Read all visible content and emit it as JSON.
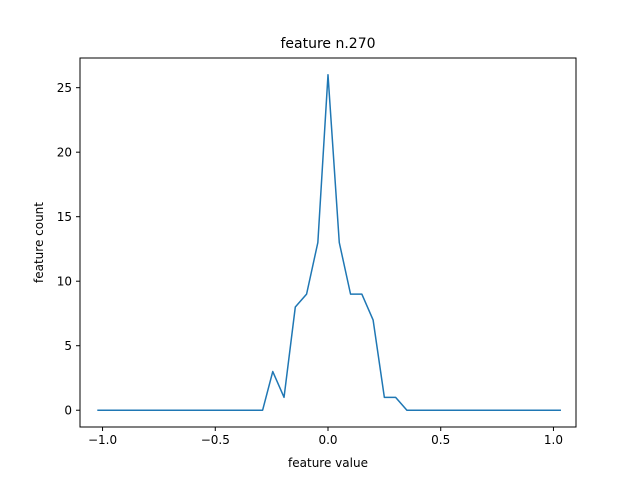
{
  "chart_data": {
    "type": "line",
    "title": "feature n.270",
    "xlabel": "feature value",
    "ylabel": "feature count",
    "xlim": [
      -1.1,
      1.1
    ],
    "ylim": [
      -1.3,
      27.3
    ],
    "xticks": [
      -1.0,
      -0.5,
      0.0,
      0.5,
      1.0
    ],
    "xtick_labels": [
      "−1.0",
      "−0.5",
      "0.0",
      "0.5",
      "1.0"
    ],
    "yticks": [
      0,
      5,
      10,
      15,
      20,
      25
    ],
    "ytick_labels": [
      "0",
      "5",
      "10",
      "15",
      "20",
      "25"
    ],
    "grid": false,
    "legend": "none",
    "series": [
      {
        "color": "#1f77b4",
        "x": [
          -1.02,
          -0.97,
          -0.92,
          -0.87,
          -0.82,
          -0.77,
          -0.72,
          -0.67,
          -0.62,
          -0.57,
          -0.52,
          -0.47,
          -0.42,
          -0.37,
          -0.32,
          -0.29,
          -0.245,
          -0.195,
          -0.145,
          -0.095,
          -0.045,
          0.0,
          0.05,
          0.1,
          0.15,
          0.2,
          0.25,
          0.3,
          0.35,
          0.4,
          0.45,
          0.5,
          0.55,
          0.6,
          0.65,
          0.7,
          0.75,
          0.8,
          0.85,
          0.9,
          0.95,
          1.0,
          1.03
        ],
        "y": [
          0,
          0,
          0,
          0,
          0,
          0,
          0,
          0,
          0,
          0,
          0,
          0,
          0,
          0,
          0,
          0,
          3,
          1,
          8,
          9,
          13,
          26,
          13,
          9,
          9,
          7,
          1,
          1,
          0,
          0,
          0,
          0,
          0,
          0,
          0,
          0,
          0,
          0,
          0,
          0,
          0,
          0,
          0
        ]
      }
    ]
  }
}
